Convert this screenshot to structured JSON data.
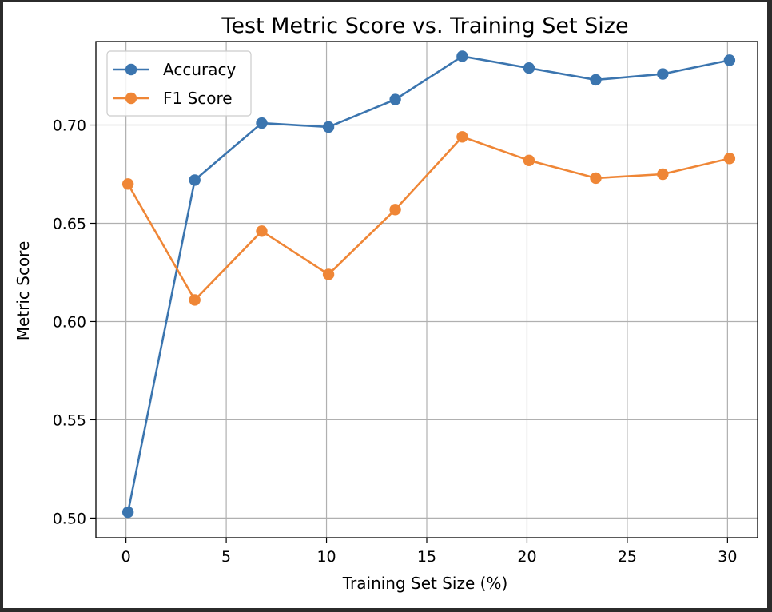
{
  "chart_data": {
    "type": "line",
    "title": "Test Metric Score vs. Training Set Size",
    "xlabel": "Training Set Size (%)",
    "ylabel": "Metric Score",
    "xlim": [
      -1.5,
      31.5
    ],
    "ylim": [
      0.49,
      0.7425
    ],
    "xticks": [
      0,
      5,
      10,
      15,
      20,
      25,
      30
    ],
    "yticks": [
      0.5,
      0.55,
      0.6,
      0.65,
      0.7
    ],
    "xtick_labels": [
      "0",
      "5",
      "10",
      "15",
      "20",
      "25",
      "30"
    ],
    "ytick_labels": [
      "0.50",
      "0.55",
      "0.60",
      "0.65",
      "0.70"
    ],
    "grid": true,
    "legend_position": "upper-left",
    "x": [
      0.1,
      3.43,
      6.77,
      10.1,
      13.43,
      16.77,
      20.1,
      23.43,
      26.77,
      30.1
    ],
    "series": [
      {
        "name": "Accuracy",
        "color": "#3b75af",
        "marker": "circle",
        "values": [
          0.503,
          0.672,
          0.701,
          0.699,
          0.713,
          0.735,
          0.729,
          0.723,
          0.726,
          0.733
        ]
      },
      {
        "name": "F1 Score",
        "color": "#ef8636",
        "marker": "circle",
        "values": [
          0.67,
          0.611,
          0.646,
          0.624,
          0.657,
          0.694,
          0.682,
          0.673,
          0.675,
          0.683
        ]
      }
    ]
  }
}
